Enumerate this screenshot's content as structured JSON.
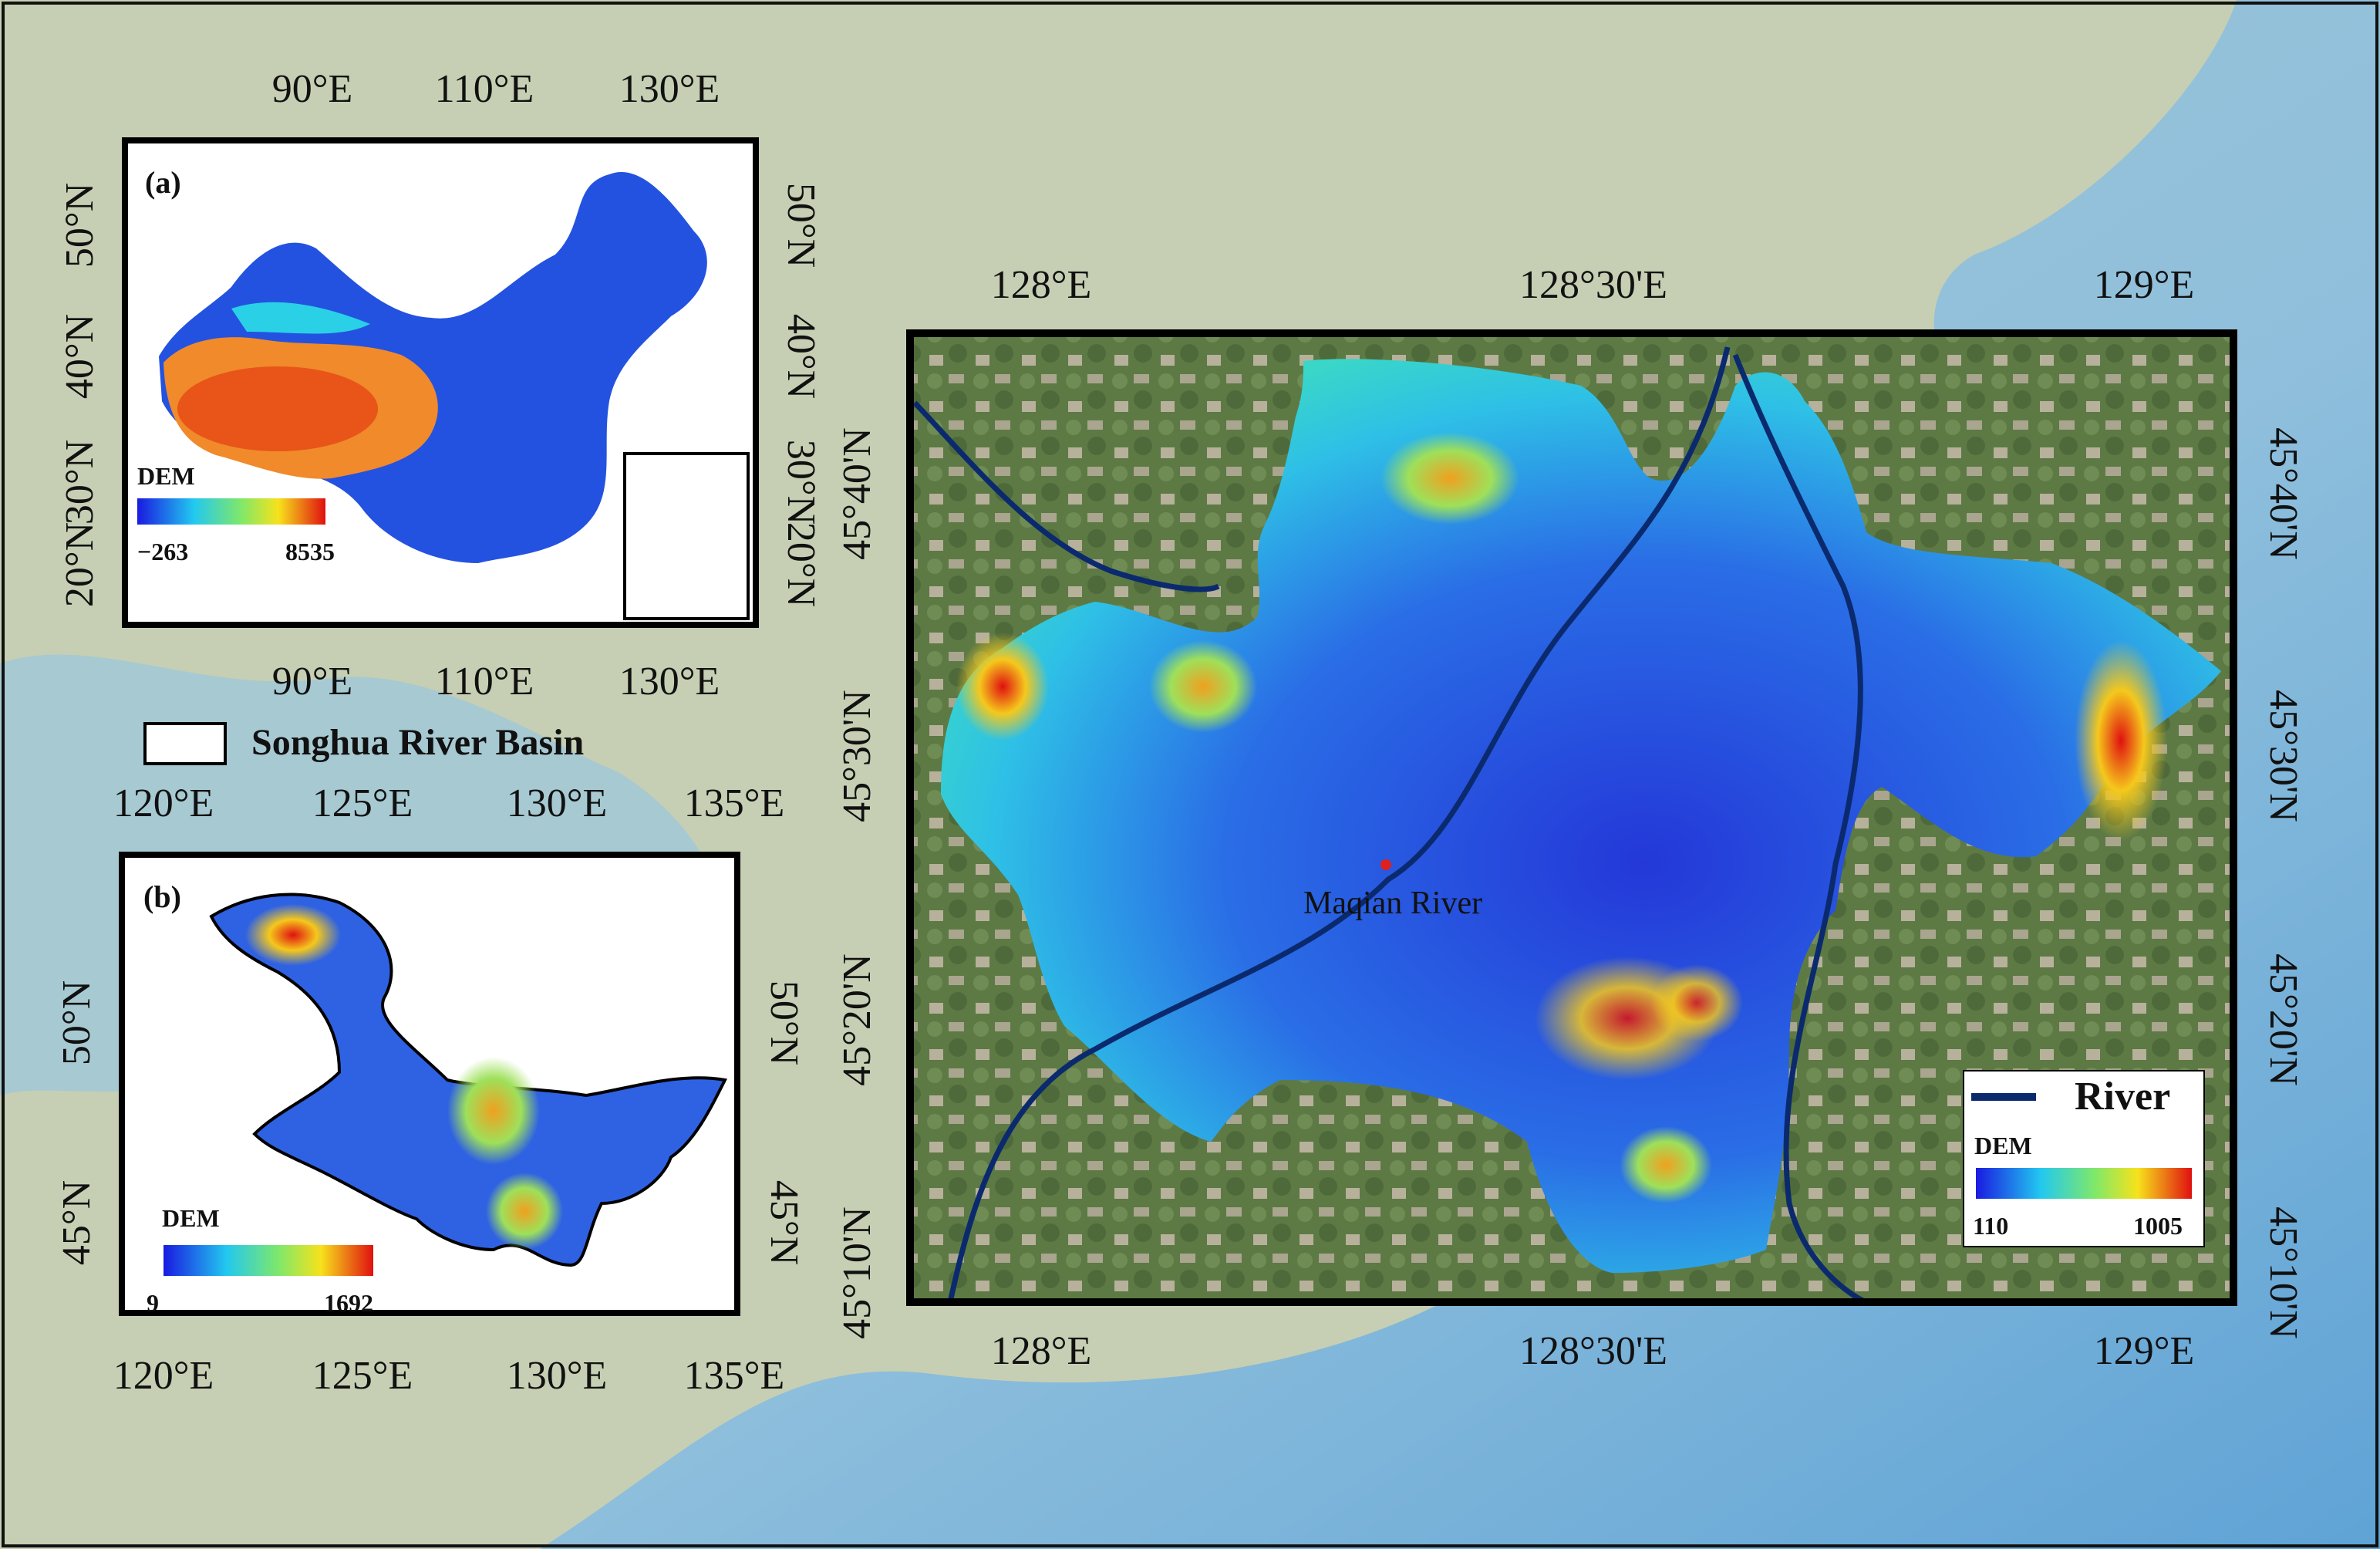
{
  "colors": {
    "sea": "#9cc4dc",
    "land": "#c9d3b8",
    "frame": "#000000",
    "river": "#0b2a6e",
    "outlet_point": "#e0201a",
    "dem_low": "#1f2fe0",
    "dem_mid": "#2ad6e0",
    "dem_high": "#e21414"
  },
  "legend_box": {
    "label": "Songhua River Basin"
  },
  "panel_a": {
    "tag": "(a)",
    "top_ticks": [
      "90°E",
      "110°E",
      "130°E"
    ],
    "bottom_ticks": [
      "90°E",
      "110°E",
      "130°E"
    ],
    "left_ticks": [
      "50°N",
      "40°N",
      "30°N",
      "20°N"
    ],
    "right_ticks": [
      "50°N",
      "40°N",
      "30°N",
      "20°N"
    ],
    "dem": {
      "title": "DEM",
      "min": "−263",
      "max": "8535"
    }
  },
  "panel_b": {
    "tag": "(b)",
    "top_ticks": [
      "120°E",
      "125°E",
      "130°E",
      "135°E"
    ],
    "bottom_ticks": [
      "120°E",
      "125°E",
      "130°E",
      "135°E"
    ],
    "left_ticks": [
      "50°N",
      "45°N"
    ],
    "right_ticks": [
      "50°N",
      "45°N"
    ],
    "dem": {
      "title": "DEM",
      "min": "9",
      "max": "1692"
    }
  },
  "main": {
    "top_ticks": [
      "128°E",
      "128°30'E",
      "129°E"
    ],
    "bottom_ticks": [
      "128°E",
      "128°30'E",
      "129°E"
    ],
    "left_ticks": [
      "45°40'N",
      "45°30'N",
      "45°20'N",
      "45°10'N"
    ],
    "right_ticks": [
      "45°40'N",
      "45°30'N",
      "45°20'N",
      "45°10'N"
    ],
    "point_label": "Maqian River",
    "legend": {
      "river_label": "River",
      "dem": {
        "title": "DEM",
        "min": "110",
        "max": "1005"
      }
    }
  }
}
